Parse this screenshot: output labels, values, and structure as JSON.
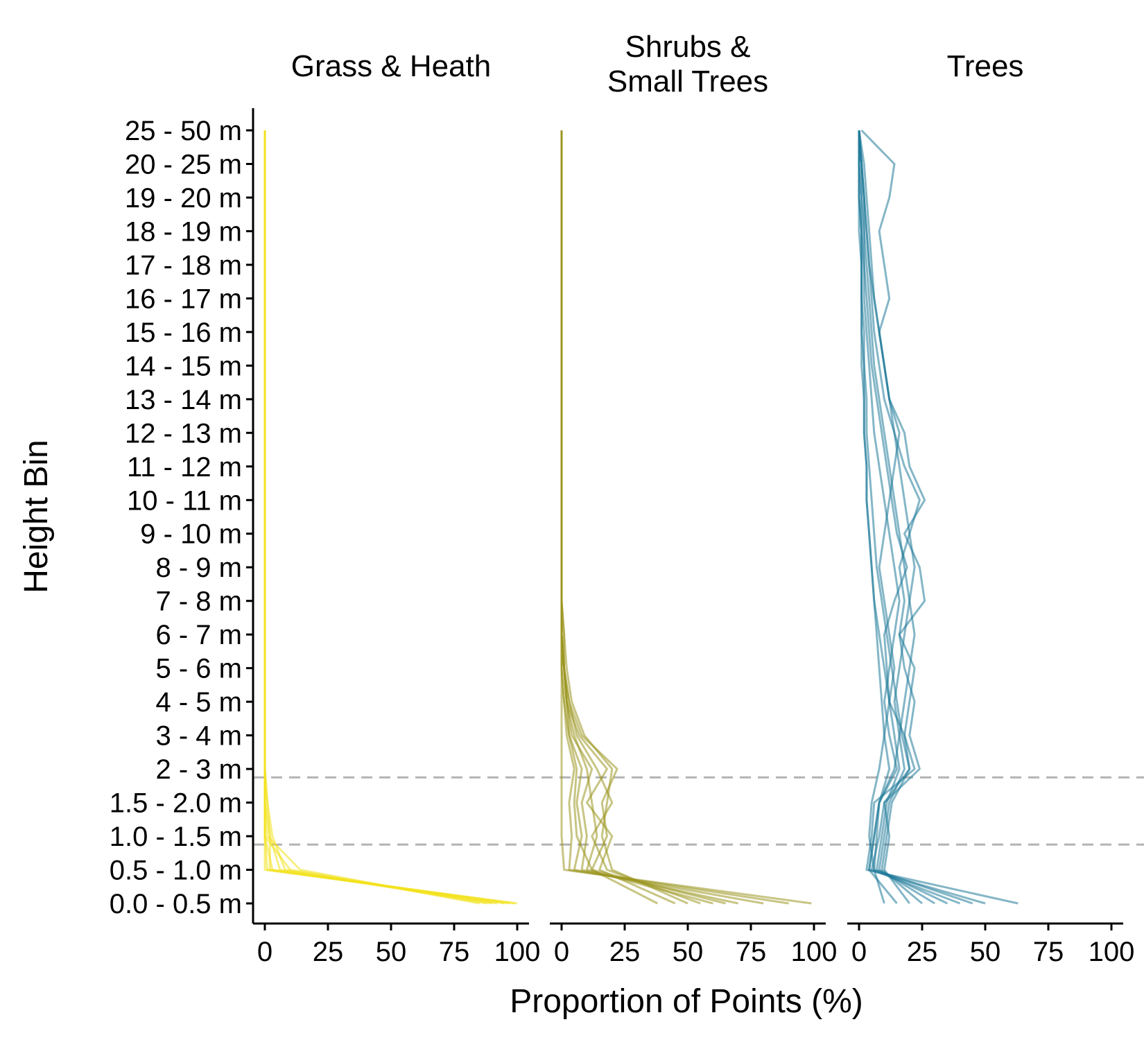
{
  "chart_data": {
    "type": "line",
    "orientation": "horizontal-profiles",
    "xlabel": "Proportion of Points (%)",
    "ylabel": "Height Bin",
    "xlim": [
      0,
      100
    ],
    "x_ticks": [
      "0",
      "25",
      "50",
      "75",
      "100"
    ],
    "y_categories": [
      "0.0 - 0.5 m",
      "0.5 - 1.0 m",
      "1.0 - 1.5 m",
      "1.5 - 2.0 m",
      "2 - 3 m",
      "3 - 4 m",
      "4 - 5 m",
      "5 - 6 m",
      "6 - 7 m",
      "7 - 8 m",
      "8 - 9 m",
      "9 - 10 m",
      "10 - 11 m",
      "11 - 12 m",
      "12 - 13 m",
      "13 - 14 m",
      "14 - 15 m",
      "15 - 16 m",
      "16 - 17 m",
      "17 - 18 m",
      "18 - 19 m",
      "19 - 20 m",
      "20 - 25 m",
      "25 - 50 m"
    ],
    "reference_lines_y": [
      1.75,
      3.75
    ],
    "panels": [
      {
        "title_lines": [
          "Grass & Heath"
        ],
        "color": "#F2E11C",
        "profiles": [
          [
            100,
            0,
            0,
            0,
            0,
            0,
            0,
            0,
            0,
            0,
            0,
            0,
            0,
            0,
            0,
            0,
            0,
            0,
            0,
            0,
            0,
            0,
            0,
            0
          ],
          [
            97,
            3,
            0,
            0,
            0,
            0,
            0,
            0,
            0,
            0,
            0,
            0,
            0,
            0,
            0,
            0,
            0,
            0,
            0,
            0,
            0,
            0,
            0,
            0
          ],
          [
            92,
            6,
            2,
            0,
            0,
            0,
            0,
            0,
            0,
            0,
            0,
            0,
            0,
            0,
            0,
            0,
            0,
            0,
            0,
            0,
            0,
            0,
            0,
            0
          ],
          [
            85,
            14,
            1,
            0,
            0,
            0,
            0,
            0,
            0,
            0,
            0,
            0,
            0,
            0,
            0,
            0,
            0,
            0,
            0,
            0,
            0,
            0,
            0,
            0
          ],
          [
            88,
            8,
            3,
            1,
            0,
            0,
            0,
            0,
            0,
            0,
            0,
            0,
            0,
            0,
            0,
            0,
            0,
            0,
            0,
            0,
            0,
            0,
            0,
            0
          ],
          [
            95,
            2,
            2,
            1,
            0,
            0,
            0,
            0,
            0,
            0,
            0,
            0,
            0,
            0,
            0,
            0,
            0,
            0,
            0,
            0,
            0,
            0,
            0,
            0
          ],
          [
            90,
            10,
            0,
            0,
            0,
            0,
            0,
            0,
            0,
            0,
            0,
            0,
            0,
            0,
            0,
            0,
            0,
            0,
            0,
            0,
            0,
            0,
            0,
            0
          ],
          [
            99,
            1,
            0,
            0,
            0,
            0,
            0,
            0,
            0,
            0,
            0,
            0,
            0,
            0,
            0,
            0,
            0,
            0,
            0,
            0,
            0,
            0,
            0,
            0
          ]
        ]
      },
      {
        "title_lines": [
          "Shrubs &",
          "Small Trees"
        ],
        "color": "#9A951F",
        "profiles": [
          [
            99,
            1,
            0,
            0,
            0,
            0,
            0,
            0,
            0,
            0,
            0,
            0,
            0,
            0,
            0,
            0,
            0,
            0,
            0,
            0,
            0,
            0,
            0,
            0
          ],
          [
            38,
            12,
            18,
            16,
            22,
            8,
            3,
            1,
            0,
            0,
            0,
            0,
            0,
            0,
            0,
            0,
            0,
            0,
            0,
            0,
            0,
            0,
            0,
            0
          ],
          [
            45,
            15,
            20,
            10,
            18,
            7,
            2,
            1,
            0,
            0,
            0,
            0,
            0,
            0,
            0,
            0,
            0,
            0,
            0,
            0,
            0,
            0,
            0,
            0
          ],
          [
            55,
            18,
            12,
            20,
            14,
            6,
            3,
            1,
            1,
            0,
            0,
            0,
            0,
            0,
            0,
            0,
            0,
            0,
            0,
            0,
            0,
            0,
            0,
            0
          ],
          [
            60,
            10,
            14,
            12,
            10,
            5,
            2,
            1,
            0,
            0,
            0,
            0,
            0,
            0,
            0,
            0,
            0,
            0,
            0,
            0,
            0,
            0,
            0,
            0
          ],
          [
            70,
            8,
            10,
            8,
            12,
            4,
            2,
            1,
            0,
            0,
            0,
            0,
            0,
            0,
            0,
            0,
            0,
            0,
            0,
            0,
            0,
            0,
            0,
            0
          ],
          [
            80,
            5,
            8,
            6,
            8,
            3,
            1,
            0,
            0,
            0,
            0,
            0,
            0,
            0,
            0,
            0,
            0,
            0,
            0,
            0,
            0,
            0,
            0,
            0
          ],
          [
            90,
            3,
            4,
            3,
            5,
            2,
            1,
            0,
            0,
            0,
            0,
            0,
            0,
            0,
            0,
            0,
            0,
            0,
            0,
            0,
            0,
            0,
            0,
            0
          ],
          [
            50,
            20,
            16,
            18,
            20,
            9,
            4,
            2,
            1,
            0,
            0,
            0,
            0,
            0,
            0,
            0,
            0,
            0,
            0,
            0,
            0,
            0,
            0,
            0
          ],
          [
            65,
            12,
            6,
            5,
            6,
            3,
            2,
            1,
            0,
            0,
            0,
            0,
            0,
            0,
            0,
            0,
            0,
            0,
            0,
            0,
            0,
            0,
            0,
            0
          ]
        ]
      },
      {
        "title_lines": [
          "Trees"
        ],
        "color": "#1F7A99",
        "profiles": [
          [
            63,
            3,
            5,
            6,
            22,
            18,
            12,
            10,
            8,
            6,
            5,
            4,
            3,
            3,
            2,
            2,
            2,
            1,
            1,
            1,
            1,
            0,
            0,
            0
          ],
          [
            40,
            5,
            8,
            10,
            24,
            20,
            22,
            18,
            16,
            26,
            24,
            18,
            26,
            20,
            18,
            12,
            10,
            8,
            6,
            5,
            4,
            3,
            2,
            0
          ],
          [
            30,
            8,
            10,
            12,
            18,
            16,
            14,
            16,
            18,
            20,
            22,
            20,
            18,
            16,
            14,
            12,
            10,
            8,
            6,
            4,
            3,
            2,
            1,
            0
          ],
          [
            20,
            10,
            12,
            10,
            20,
            18,
            20,
            22,
            16,
            18,
            16,
            20,
            24,
            18,
            14,
            10,
            8,
            6,
            5,
            4,
            3,
            2,
            1,
            0
          ],
          [
            10,
            6,
            4,
            5,
            8,
            10,
            12,
            14,
            12,
            10,
            8,
            10,
            12,
            14,
            16,
            12,
            10,
            8,
            12,
            10,
            8,
            12,
            14,
            1
          ],
          [
            50,
            4,
            6,
            8,
            15,
            12,
            10,
            12,
            14,
            16,
            14,
            12,
            10,
            8,
            6,
            5,
            4,
            3,
            2,
            2,
            1,
            1,
            1,
            0
          ],
          [
            25,
            9,
            11,
            13,
            20,
            17,
            15,
            13,
            11,
            9,
            7,
            6,
            5,
            4,
            3,
            3,
            2,
            2,
            1,
            1,
            1,
            0,
            0,
            0
          ],
          [
            35,
            7,
            9,
            11,
            16,
            14,
            12,
            11,
            10,
            14,
            19,
            15,
            13,
            11,
            9,
            7,
            5,
            4,
            3,
            2,
            2,
            1,
            0,
            0
          ],
          [
            45,
            6,
            7,
            8,
            12,
            10,
            9,
            8,
            7,
            6,
            5,
            4,
            3,
            3,
            2,
            2,
            1,
            1,
            1,
            1,
            0,
            0,
            0,
            0
          ],
          [
            15,
            4,
            6,
            8,
            14,
            16,
            18,
            20,
            22,
            20,
            18,
            16,
            14,
            12,
            10,
            8,
            6,
            5,
            4,
            3,
            2,
            2,
            1,
            0
          ]
        ]
      }
    ]
  }
}
